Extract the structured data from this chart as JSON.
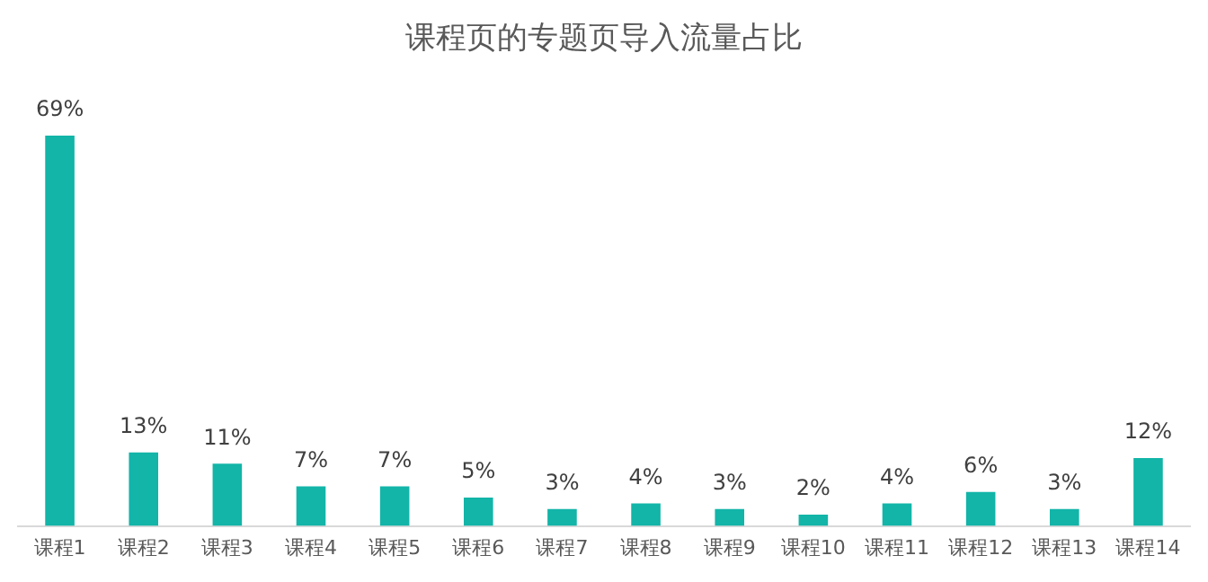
{
  "chart_data": {
    "type": "bar",
    "title": "课程页的专题页导入流量占比",
    "categories": [
      "课程1",
      "课程2",
      "课程3",
      "课程4",
      "课程5",
      "课程6",
      "课程7",
      "课程8",
      "课程9",
      "课程10",
      "课程11",
      "课程12",
      "课程13",
      "课程14"
    ],
    "values": [
      69,
      13,
      11,
      7,
      7,
      5,
      3,
      4,
      3,
      2,
      4,
      6,
      3,
      12
    ],
    "value_labels": [
      "69%",
      "13%",
      "11%",
      "7%",
      "7%",
      "5%",
      "3%",
      "4%",
      "3%",
      "2%",
      "4%",
      "6%",
      "3%",
      "12%"
    ],
    "color": "#12b5a8"
  }
}
